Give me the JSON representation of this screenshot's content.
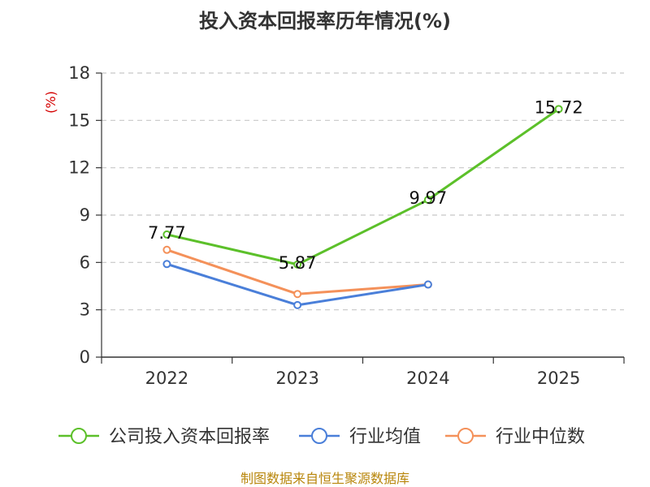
{
  "chart_data": {
    "type": "line",
    "title": "投入资本回报率历年情况(%)",
    "ylabel": "(%)",
    "xlabel": "",
    "categories": [
      "2022",
      "2023",
      "2024",
      "2025"
    ],
    "ylim": [
      0,
      18
    ],
    "yticks": [
      0,
      3,
      6,
      9,
      12,
      15,
      18
    ],
    "grid": true,
    "legend_position": "bottom",
    "series": [
      {
        "name": "公司投入资本回报率",
        "color": "#5cc02a",
        "values": [
          7.77,
          5.87,
          9.97,
          15.72
        ],
        "labels": [
          "7.77",
          "5.87",
          "9.97",
          "15.72"
        ]
      },
      {
        "name": "行业均值",
        "color": "#4a7fd9",
        "values": [
          5.9,
          3.3,
          4.6,
          null
        ]
      },
      {
        "name": "行业中位数",
        "color": "#f4915a",
        "values": [
          6.8,
          4.0,
          4.6,
          null
        ]
      }
    ]
  },
  "footer": {
    "source": "制图数据来自恒生聚源数据库"
  }
}
